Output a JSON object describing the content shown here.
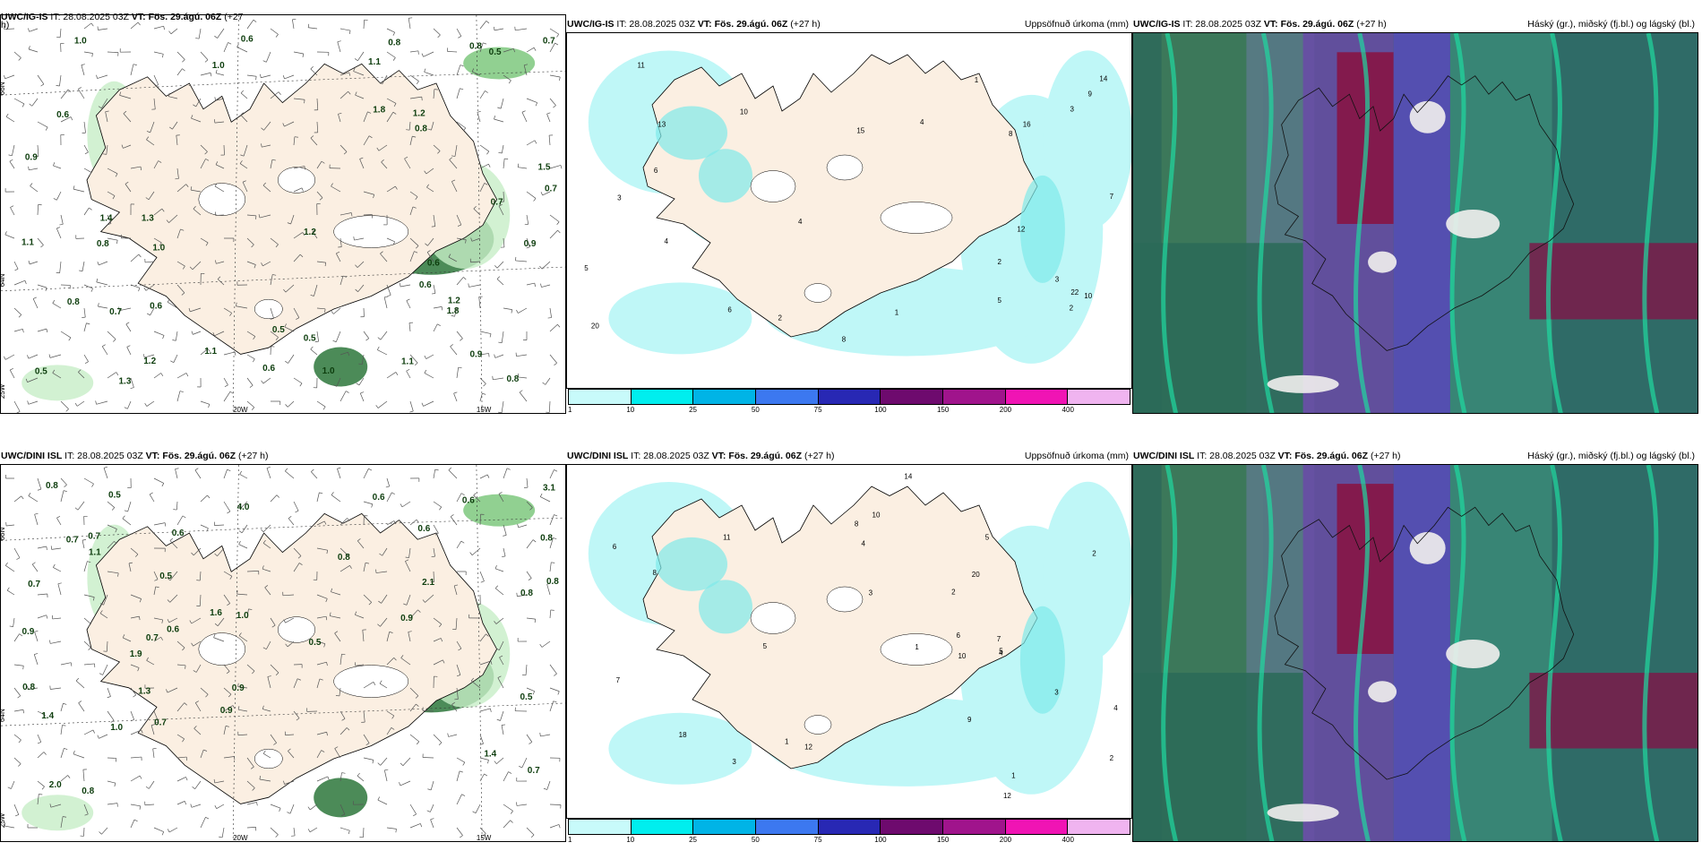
{
  "rows": [
    {
      "model": "UWC/IG-IS",
      "wind_panel": {
        "title_model": "UWC/IG-IS",
        "title_rest": " IT: 28.08.2025 03Z ",
        "title_vt": "VT: Fös. 29.ágú. 06Z",
        "title_tail": " (+27",
        "title_wrap": "h)",
        "lat_labels": [
          "66N",
          "64N",
          "25W"
        ],
        "lon_labels": [
          "20W",
          "15W"
        ],
        "values": [
          "0.5",
          "1.0",
          "0.9",
          "1.8",
          "1.3",
          "0.7",
          "0.6",
          "1.1",
          "1.1",
          "0.6",
          "1.3",
          "1.2",
          "0.6",
          "1.4",
          "0.9",
          "0.8",
          "0.5",
          "1.8",
          "1.5",
          "1.1",
          "0.5",
          "1.0",
          "0.7",
          "0.9",
          "0.8",
          "0.5",
          "0.6",
          "1.0",
          "0.7",
          "0.6",
          "1.1",
          "0.8",
          "1.2",
          "0.8",
          "0.8",
          "1.2",
          "0.8",
          "1.2",
          "0.7",
          "1.0",
          "0.6"
        ]
      },
      "precip_panel": {
        "title_model": "UWC/IG-IS",
        "title_rest": " IT: 28.08.2025 03Z ",
        "title_vt": "VT: Fös. 29.ágú. 06Z",
        "title_tail": " (+27 h)",
        "right_label": "Uppsöfnuð úrkoma (mm)",
        "values": [
          "1",
          "2",
          "3",
          "4",
          "11",
          "16",
          "9",
          "10",
          "5",
          "6",
          "12",
          "14",
          "8",
          "7",
          "20",
          "22",
          "13",
          "15",
          "3",
          "4",
          "2",
          "1",
          "5",
          "6",
          "8",
          "3",
          "10",
          "4",
          "2"
        ]
      },
      "cloud_panel": {
        "title_model": "UWC/IG-IS",
        "title_rest": " IT: 28.08.2025 03Z ",
        "title_vt": "VT: Fös. 29.ágú. 06Z",
        "title_tail": " (+27 h)",
        "right_label": "Háský (gr.), miðský (fj.bl.) og lágský (bl.)"
      }
    },
    {
      "model": "UWC/DINI ISL",
      "wind_panel": {
        "title_model": "UWC/DINI ISL",
        "title_rest": " IT: 28.08.2025 03Z ",
        "title_vt": "VT: Fös. 29.ágú. 06Z",
        "title_tail": " (+27 h)",
        "title_wrap": "",
        "lat_labels": [
          "66N",
          "64N",
          "25W"
        ],
        "lon_labels": [
          "20W",
          "15W"
        ],
        "values": [
          "0.7",
          "0.7",
          "1.9",
          "0.5",
          "0.8",
          "0.7",
          "0.6",
          "1.3",
          "1.4",
          "0.8",
          "0.8",
          "0.6",
          "0.9",
          "0.5",
          "1.0",
          "0.8",
          "1.6",
          "2.0",
          "0.6",
          "0.9",
          "0.5",
          "0.8",
          "0.7",
          "1.1",
          "0.9",
          "4.0",
          "3.1",
          "0.7",
          "1.0",
          "0.5",
          "1.4",
          "0.6",
          "0.8",
          "0.8",
          "0.9",
          "0.6",
          "2.1",
          "0.7"
        ]
      },
      "precip_panel": {
        "title_model": "UWC/DINI ISL",
        "title_rest": " IT: 28.08.2025 03Z ",
        "title_vt": "VT: Fös. 29.ágú. 06Z",
        "title_tail": " (+27 h)",
        "right_label": "Uppsöfnuð úrkoma (mm)",
        "values": [
          "4",
          "2",
          "3",
          "1",
          "9",
          "11",
          "14",
          "18",
          "10",
          "20",
          "12",
          "6",
          "8",
          "5",
          "7",
          "3",
          "4",
          "2",
          "1",
          "6",
          "5",
          "8",
          "10",
          "12",
          "3",
          "4",
          "5",
          "2",
          "1",
          "7"
        ]
      },
      "cloud_panel": {
        "title_model": "UWC/DINI ISL",
        "title_rest": " IT: 28.08.2025 03Z ",
        "title_vt": "VT: Fös. 29.ágú. 06Z",
        "title_tail": " (+27 h)",
        "right_label": "Háský (gr.), miðský (fj.bl.) og lágský (bl.)"
      }
    }
  ],
  "precip_legend": {
    "colors": [
      "#c8fafa",
      "#00eeee",
      "#00b4e6",
      "#3c78f0",
      "#2828b4",
      "#6e0a6e",
      "#a0148c",
      "#f014b4",
      "#f0b4f0"
    ],
    "ticks": [
      "1",
      "10",
      "25",
      "50",
      "75",
      "100",
      "150",
      "200",
      "400"
    ]
  },
  "colors": {
    "land": "#fbefe2",
    "sea": "#ffffff",
    "precip_light": "#bff7f7",
    "precip_mid": "#7feaea",
    "wind_green_light": "#c7eec7",
    "wind_green_mid": "#76c476",
    "wind_green_dark": "#1f6e2e"
  }
}
